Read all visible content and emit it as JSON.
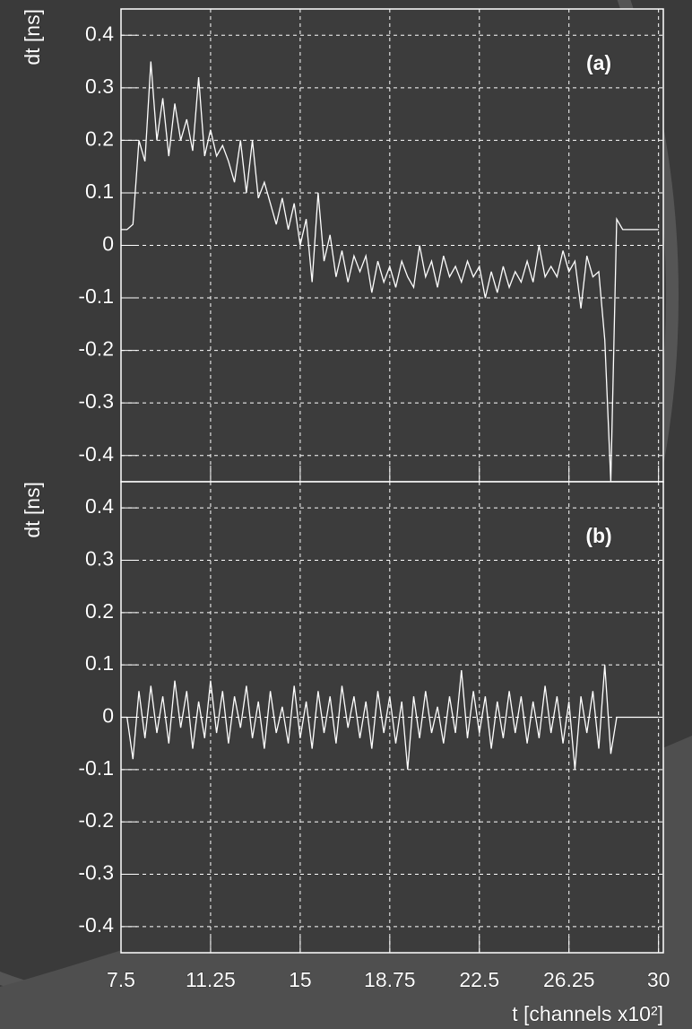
{
  "chart_data": [
    {
      "type": "line",
      "annotation": "(a)",
      "y_label": "dt [ns]",
      "x": [
        7.5,
        7.75,
        8,
        8.25,
        8.5,
        8.75,
        9,
        9.25,
        9.5,
        9.75,
        10,
        10.25,
        10.5,
        10.75,
        11,
        11.25,
        11.5,
        11.75,
        12,
        12.25,
        12.5,
        12.75,
        13,
        13.25,
        13.5,
        13.75,
        14,
        14.25,
        14.5,
        14.75,
        15,
        15.25,
        15.5,
        15.75,
        16,
        16.25,
        16.5,
        16.75,
        17,
        17.25,
        17.5,
        17.75,
        18,
        18.25,
        18.5,
        18.75,
        19,
        19.25,
        19.5,
        19.75,
        20,
        20.25,
        20.5,
        20.75,
        21,
        21.25,
        21.5,
        21.75,
        22,
        22.25,
        22.5,
        22.75,
        23,
        23.25,
        23.5,
        23.75,
        24,
        24.25,
        24.5,
        24.75,
        25,
        25.25,
        25.5,
        25.75,
        26,
        26.25,
        26.5,
        26.75,
        27,
        27.25,
        27.5,
        27.75,
        28,
        28.25,
        28.5,
        28.75,
        29,
        29.25,
        29.5,
        29.75,
        30
      ],
      "series": [
        {
          "color": "#ffffff",
          "values": [
            0.03,
            0.03,
            0.04,
            0.2,
            0.16,
            0.35,
            0.2,
            0.28,
            0.17,
            0.27,
            0.2,
            0.24,
            0.18,
            0.32,
            0.17,
            0.22,
            0.17,
            0.19,
            0.16,
            0.12,
            0.2,
            0.1,
            0.2,
            0.09,
            0.12,
            0.08,
            0.04,
            0.09,
            0.03,
            0.08,
            0.0,
            0.05,
            -0.07,
            0.1,
            -0.03,
            0.02,
            -0.06,
            -0.01,
            -0.07,
            -0.02,
            -0.05,
            -0.02,
            -0.09,
            -0.03,
            -0.07,
            -0.04,
            -0.08,
            -0.03,
            -0.06,
            -0.08,
            0.0,
            -0.06,
            -0.03,
            -0.08,
            -0.02,
            -0.06,
            -0.04,
            -0.07,
            -0.03,
            -0.06,
            -0.04,
            -0.1,
            -0.05,
            -0.09,
            -0.04,
            -0.08,
            -0.05,
            -0.07,
            -0.03,
            -0.07,
            0.0,
            -0.06,
            -0.04,
            -0.06,
            -0.01,
            -0.05,
            -0.03,
            -0.12,
            -0.02,
            -0.06,
            -0.05,
            -0.18,
            -0.45,
            0.05,
            0.03,
            0.03,
            0.03,
            0.03,
            0.03,
            0.03,
            0.03
          ]
        }
      ],
      "xlim": [
        7.5,
        30.2
      ],
      "xticks": [
        7.5,
        11.25,
        15,
        18.75,
        22.5,
        26.25,
        30
      ],
      "ylim": [
        -0.45,
        0.45
      ],
      "yticks": [
        -0.4,
        -0.3,
        -0.2,
        -0.1,
        0,
        0.1,
        0.2,
        0.3,
        0.4
      ],
      "grid": true
    },
    {
      "type": "line",
      "annotation": "(b)",
      "y_label": "dt [ns]",
      "x_label": "t [channels x10²]",
      "x": [
        7.5,
        7.75,
        8,
        8.25,
        8.5,
        8.75,
        9,
        9.25,
        9.5,
        9.75,
        10,
        10.25,
        10.5,
        10.75,
        11,
        11.25,
        11.5,
        11.75,
        12,
        12.25,
        12.5,
        12.75,
        13,
        13.25,
        13.5,
        13.75,
        14,
        14.25,
        14.5,
        14.75,
        15,
        15.25,
        15.5,
        15.75,
        16,
        16.25,
        16.5,
        16.75,
        17,
        17.25,
        17.5,
        17.75,
        18,
        18.25,
        18.5,
        18.75,
        19,
        19.25,
        19.5,
        19.75,
        20,
        20.25,
        20.5,
        20.75,
        21,
        21.25,
        21.5,
        21.75,
        22,
        22.25,
        22.5,
        22.75,
        23,
        23.25,
        23.5,
        23.75,
        24,
        24.25,
        24.5,
        24.75,
        25,
        25.25,
        25.5,
        25.75,
        26,
        26.25,
        26.5,
        26.75,
        27,
        27.25,
        27.5,
        27.75,
        28,
        28.25,
        28.5,
        28.75,
        29,
        29.25,
        29.5,
        29.75,
        30
      ],
      "series": [
        {
          "color": "#ffffff",
          "values": [
            0,
            0,
            -0.08,
            0.05,
            -0.04,
            0.06,
            -0.03,
            0.04,
            -0.05,
            0.07,
            -0.02,
            0.05,
            -0.06,
            0.03,
            -0.04,
            0.07,
            -0.03,
            0.05,
            -0.05,
            0.04,
            -0.02,
            0.06,
            -0.04,
            0.03,
            -0.06,
            0.05,
            -0.03,
            0.02,
            -0.05,
            0.06,
            -0.04,
            0.03,
            -0.06,
            0.05,
            -0.03,
            0.04,
            -0.05,
            0.06,
            -0.02,
            0.04,
            -0.04,
            0.03,
            -0.06,
            0.05,
            -0.03,
            0.04,
            -0.05,
            0.03,
            -0.1,
            0.04,
            -0.04,
            0.05,
            -0.03,
            0.02,
            -0.05,
            0.04,
            -0.03,
            0.09,
            -0.04,
            0.05,
            -0.03,
            0.04,
            -0.06,
            0.03,
            -0.04,
            0.05,
            -0.03,
            0.04,
            -0.05,
            0.03,
            -0.04,
            0.06,
            -0.03,
            0.04,
            -0.05,
            0.03,
            -0.1,
            0.04,
            -0.03,
            0.05,
            -0.06,
            0.1,
            -0.07,
            0,
            0,
            0,
            0,
            0,
            0,
            0,
            0
          ]
        }
      ],
      "xlim": [
        7.5,
        30.2
      ],
      "xticks": [
        7.5,
        11.25,
        15,
        18.75,
        22.5,
        26.25,
        30
      ],
      "ylim": [
        -0.45,
        0.45
      ],
      "yticks": [
        -0.4,
        -0.3,
        -0.2,
        -0.1,
        0,
        0.1,
        0.2,
        0.3,
        0.4
      ],
      "grid": true
    }
  ]
}
